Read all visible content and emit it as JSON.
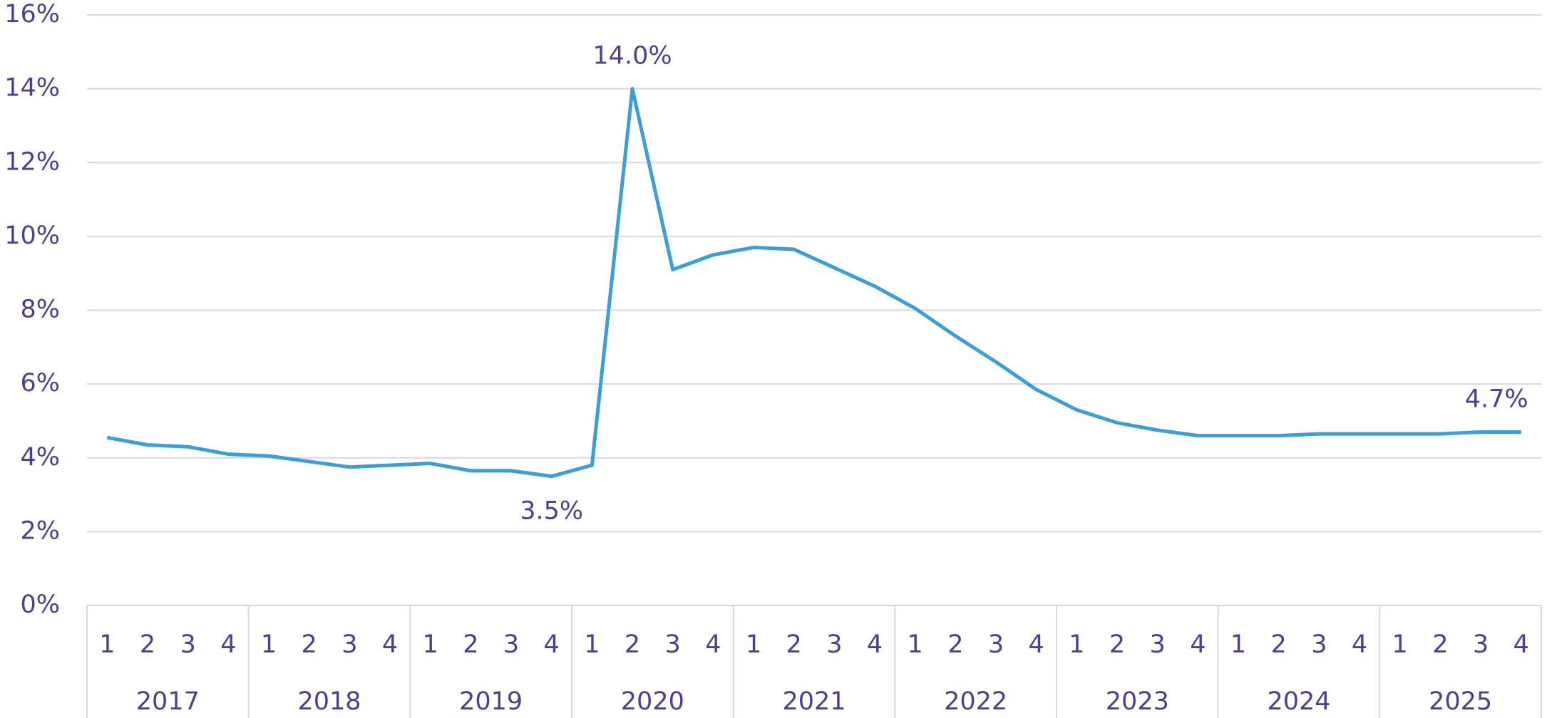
{
  "chart_data": {
    "type": "line",
    "categories": [
      "1",
      "2",
      "3",
      "4",
      "1",
      "2",
      "3",
      "4",
      "1",
      "2",
      "3",
      "4",
      "1",
      "2",
      "3",
      "4",
      "1",
      "2",
      "3",
      "4",
      "1",
      "2",
      "3",
      "4",
      "1",
      "2",
      "3",
      "4",
      "1",
      "2",
      "3",
      "4",
      "1",
      "2",
      "3",
      "4"
    ],
    "category_groups": [
      "2017",
      "2018",
      "2019",
      "2020",
      "2021",
      "2022",
      "2023",
      "2024",
      "2025"
    ],
    "series": [
      {
        "color": "#3a9fd8",
        "values": [
          4.55,
          4.35,
          4.3,
          4.1,
          4.05,
          3.9,
          3.75,
          3.8,
          3.85,
          3.65,
          3.65,
          3.5,
          3.8,
          14.0,
          9.1,
          9.5,
          9.7,
          9.65,
          9.15,
          8.65,
          8.05,
          7.3,
          6.6,
          5.85,
          5.3,
          4.95,
          4.75,
          4.6,
          4.6,
          4.6,
          4.65,
          4.65,
          4.65,
          4.65,
          4.7,
          4.7
        ],
        "value_labels": [
          null,
          null,
          null,
          null,
          null,
          null,
          null,
          null,
          null,
          null,
          null,
          "3.5%",
          null,
          "14.0%",
          null,
          null,
          null,
          null,
          null,
          null,
          null,
          null,
          null,
          null,
          null,
          null,
          null,
          null,
          null,
          null,
          null,
          null,
          null,
          null,
          null,
          "4.7%"
        ]
      }
    ],
    "ylim": [
      0,
      16
    ],
    "yticks": [
      {
        "value": 0,
        "label": "0%"
      },
      {
        "value": 2,
        "label": "2%"
      },
      {
        "value": 4,
        "label": "4%"
      },
      {
        "value": 6,
        "label": "6%"
      },
      {
        "value": 8,
        "label": "8%"
      },
      {
        "value": 10,
        "label": "10%"
      },
      {
        "value": 12,
        "label": "12%"
      },
      {
        "value": 14,
        "label": "14%"
      },
      {
        "value": 16,
        "label": "16%"
      }
    ],
    "grid": true
  }
}
